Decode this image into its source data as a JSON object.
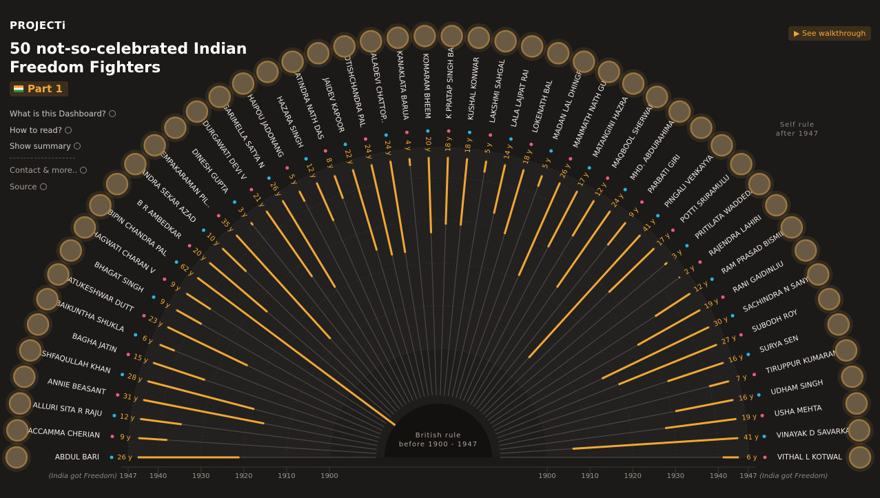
{
  "header": {
    "brand": "PROJECTi",
    "part": "Part 1",
    "walkthrough": "See walkthrough",
    "menu": [
      "What is this Dashboard?",
      "How to read?",
      "Show summary",
      "Contact & more..",
      "Source"
    ],
    "self_rule": [
      "Self rule",
      "after 1947"
    ]
  },
  "chart_data": {
    "type": "radial-bar",
    "title": "50 not-so-celebrated Indian Freedom Fighters",
    "center_note": [
      "British rule",
      "before 1900 - 1947"
    ],
    "axis_note": "(India got Freedom)",
    "categories": [
      "ABDUL BARI",
      "ACCAMMA CHERIAN",
      "ALLURI SITA R RAJU",
      "ANNIE BEASANT",
      "ASHFAQULLAH KHAN",
      "BAGHA JATIN",
      "BAIKUNTHA SHUKLA",
      "BATUKESHWAR DUTT",
      "BHAGAT SINGH",
      "BHAGWATI CHARAN V",
      "BIPIN CHANDRA PAL",
      "B R AMBEDKAR",
      "CHANDRA SEKAR AZAD",
      "CHEMPAKARAMAN PIL..",
      "DINESH GUPTA",
      "DURGAWATI DEVI V",
      "GARIMELLA SATYA N",
      "HAIPOU JADONANG",
      "HAZARA SINGH",
      "JATINDRA NATH DAS",
      "JAIDEV KAPOOR",
      "JYOTISHCHANDRA PAL",
      "KAMALADEVI CHATTOP..",
      "KANAKLATA BARUA",
      "KOMARAM BHEEM",
      "K PRATAP SINGH BARH..",
      "KUSHAL KONWAR",
      "LAKSHMI SAHGAL",
      "LALA LAJPAT RAI",
      "LOKENATH BAL",
      "MADAN LAL DHINGRA",
      "MANMATH NATH GUPTA",
      "MATANGINI HAZRA",
      "MAQBOOL SHERWANI",
      "MHD. ABDURAHIMAN",
      "PARBATI GIRI",
      "PINGALI VENKAYYA",
      "POTTI SRIRAMULU",
      "PRITILATA WADDEDAR",
      "RAJENDRA LAHIRI",
      "RAM PRASAD BISMIL",
      "RANI GAIDINLIU",
      "SACHINDRA N SANYAL",
      "SUBODH ROY",
      "SURYA SEN",
      "TIRUPPUR KUMARAN",
      "UDHAM SINGH",
      "USHA MEHTA",
      "VINAYAK D SAVARKAR",
      "VITHAL L KOTWAL"
    ],
    "values": [
      26,
      9,
      12,
      31,
      28,
      15,
      6,
      23,
      9,
      9,
      62,
      20,
      10,
      35,
      3,
      21,
      26,
      5,
      12,
      8,
      22,
      24,
      24,
      4,
      20,
      18,
      18,
      5,
      14,
      18,
      5,
      26,
      17,
      12,
      24,
      9,
      41,
      17,
      3,
      2,
      12,
      19,
      30,
      27,
      16,
      7,
      16,
      19,
      41,
      6
    ],
    "value_labels": [
      "26 y",
      "9 y",
      "12 y",
      "31 y",
      "28 y",
      "15 y",
      "6 y",
      "23 y",
      "9 y",
      "9 y",
      "62 y",
      "20 y",
      "10 y",
      "35 y",
      "3 y",
      "21 y",
      "26 y",
      "5 y",
      "12 y",
      "8 y",
      "22 y",
      "24 y",
      "24 y",
      "4 y",
      "20 y",
      "18 y",
      "18 y",
      "5 y",
      "14 y",
      "18 y",
      "5 y",
      "26 y",
      "17 y",
      "12 y",
      "24 y",
      "9 y",
      "41 y",
      "17 y",
      "3 y",
      "2 y",
      "12 y",
      "19 y",
      "30 y",
      "27 y",
      "16 y",
      "7 y",
      "16 y",
      "19 y",
      "41 y",
      "6 y"
    ],
    "color": "#f0a735",
    "rlim": [
      1900,
      1947
    ],
    "rticks": [
      1900,
      1910,
      1920,
      1930,
      1940,
      1947
    ],
    "grid": true
  }
}
